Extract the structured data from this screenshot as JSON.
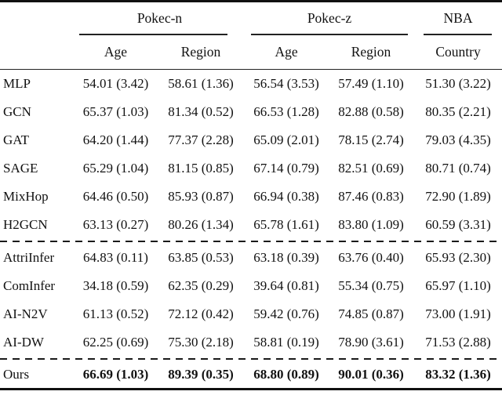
{
  "table": {
    "col_groups": [
      {
        "label": "Pokec-n",
        "span": 2
      },
      {
        "label": "Pokec-z",
        "span": 2
      },
      {
        "label": "NBA",
        "span": 1
      }
    ],
    "sub_headers": [
      "Age",
      "Region",
      "Age",
      "Region",
      "Country"
    ],
    "rows": [
      {
        "label": "MLP",
        "values": [
          "54.01 (3.42)",
          "58.61 (1.36)",
          "56.54 (3.53)",
          "57.49 (1.10)",
          "51.30 (3.22)"
        ]
      },
      {
        "label": "GCN",
        "values": [
          "65.37 (1.03)",
          "81.34 (0.52)",
          "66.53 (1.28)",
          "82.88 (0.58)",
          "80.35 (2.21)"
        ]
      },
      {
        "label": "GAT",
        "values": [
          "64.20 (1.44)",
          "77.37 (2.28)",
          "65.09 (2.01)",
          "78.15 (2.74)",
          "79.03 (4.35)"
        ]
      },
      {
        "label": "SAGE",
        "values": [
          "65.29 (1.04)",
          "81.15 (0.85)",
          "67.14 (0.79)",
          "82.51 (0.69)",
          "80.71 (0.74)"
        ]
      },
      {
        "label": "MixHop",
        "values": [
          "64.46 (0.50)",
          "85.93 (0.87)",
          "66.94 (0.38)",
          "87.46 (0.83)",
          "72.90 (1.89)"
        ]
      },
      {
        "label": "H2GCN",
        "values": [
          "63.13 (0.27)",
          "80.26 (1.34)",
          "65.78 (1.61)",
          "83.80 (1.09)",
          "60.59 (3.31)"
        ]
      },
      {
        "label": "AttriInfer",
        "values": [
          "64.83 (0.11)",
          "63.85 (0.53)",
          "63.18 (0.39)",
          "63.76 (0.40)",
          "65.93 (2.30)"
        ]
      },
      {
        "label": "ComInfer",
        "values": [
          "34.18 (0.59)",
          "62.35 (0.29)",
          "39.64 (0.81)",
          "55.34 (0.75)",
          "65.97 (1.10)"
        ]
      },
      {
        "label": "AI-N2V",
        "values": [
          "61.13 (0.52)",
          "72.12 (0.42)",
          "59.42 (0.76)",
          "74.85 (0.87)",
          "73.00 (1.91)"
        ]
      },
      {
        "label": "AI-DW",
        "values": [
          "62.25 (0.69)",
          "75.30 (2.18)",
          "58.81 (0.19)",
          "78.90 (3.61)",
          "71.53 (2.88)"
        ]
      }
    ],
    "ours_row": {
      "label": "Ours",
      "values": [
        "66.69 (1.03)",
        "89.39 (0.35)",
        "68.80 (0.89)",
        "90.01 (0.36)",
        "83.32 (1.36)"
      ]
    },
    "colors": {
      "rule": "#111111",
      "text": "#111111"
    }
  }
}
